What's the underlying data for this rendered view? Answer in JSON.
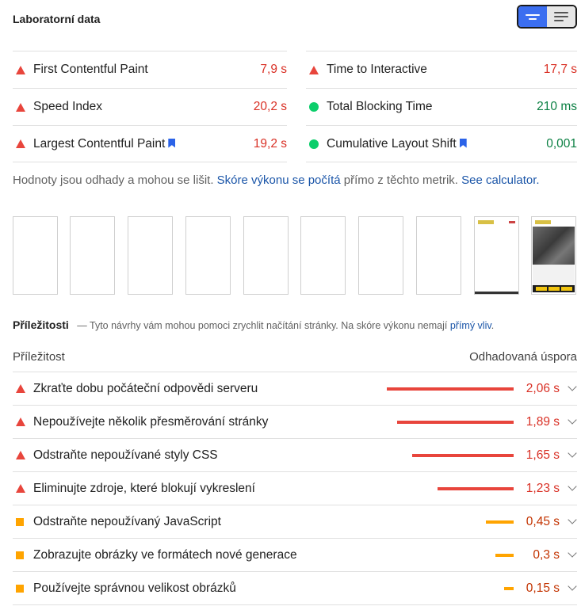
{
  "header": {
    "title": "Laboratorní data"
  },
  "toggle": {
    "active": "compact-view",
    "inactive": "expanded-view"
  },
  "metrics": {
    "left": [
      {
        "label": "First Contentful Paint",
        "value": "7,9 s",
        "status": "fail",
        "bookmark": false
      },
      {
        "label": "Speed Index",
        "value": "20,2 s",
        "status": "fail",
        "bookmark": false
      },
      {
        "label": "Largest Contentful Paint",
        "value": "19,2 s",
        "status": "fail",
        "bookmark": true
      }
    ],
    "right": [
      {
        "label": "Time to Interactive",
        "value": "17,7 s",
        "status": "fail",
        "bookmark": false
      },
      {
        "label": "Total Blocking Time",
        "value": "210 ms",
        "status": "pass",
        "bookmark": false
      },
      {
        "label": "Cumulative Layout Shift",
        "value": "0,001",
        "status": "pass",
        "bookmark": true
      }
    ]
  },
  "note": {
    "text1": "Hodnoty jsou odhady a mohou se lišit.",
    "link1": "Skóre výkonu se počítá",
    "text2": "přímo z těchto metrik.",
    "link2": "See calculator."
  },
  "filmstrip": {
    "frames": [
      "blank",
      "blank",
      "blank",
      "blank",
      "blank",
      "blank",
      "blank",
      "blank",
      "partial",
      "full"
    ]
  },
  "opportunities": {
    "title": "Příležitosti",
    "desc": "— Tyto návrhy vám mohou pomoci zrychlit načítání stránky. Na skóre výkonu nemají",
    "desc_link": "přímý vliv",
    "desc_end": ".",
    "col_left": "Příležitost",
    "col_right": "Odhadovaná úspora",
    "items": [
      {
        "label": "Zkraťte dobu počáteční odpovědi serveru",
        "value": "2,06 s",
        "seconds": 2.06,
        "severity": "fail"
      },
      {
        "label": "Nepoužívejte několik přesměrování stránky",
        "value": "1,89 s",
        "seconds": 1.89,
        "severity": "fail"
      },
      {
        "label": "Odstraňte nepoužívané styly CSS",
        "value": "1,65 s",
        "seconds": 1.65,
        "severity": "fail"
      },
      {
        "label": "Eliminujte zdroje, které blokují vykreslení",
        "value": "1,23 s",
        "seconds": 1.23,
        "severity": "fail"
      },
      {
        "label": "Odstraňte nepoužívaný JavaScript",
        "value": "0,45 s",
        "seconds": 0.45,
        "severity": "average"
      },
      {
        "label": "Zobrazujte obrázky ve formátech nové generace",
        "value": "0,3 s",
        "seconds": 0.3,
        "severity": "average"
      },
      {
        "label": "Používejte správnou velikost obrázků",
        "value": "0,15 s",
        "seconds": 0.15,
        "severity": "average"
      }
    ]
  }
}
